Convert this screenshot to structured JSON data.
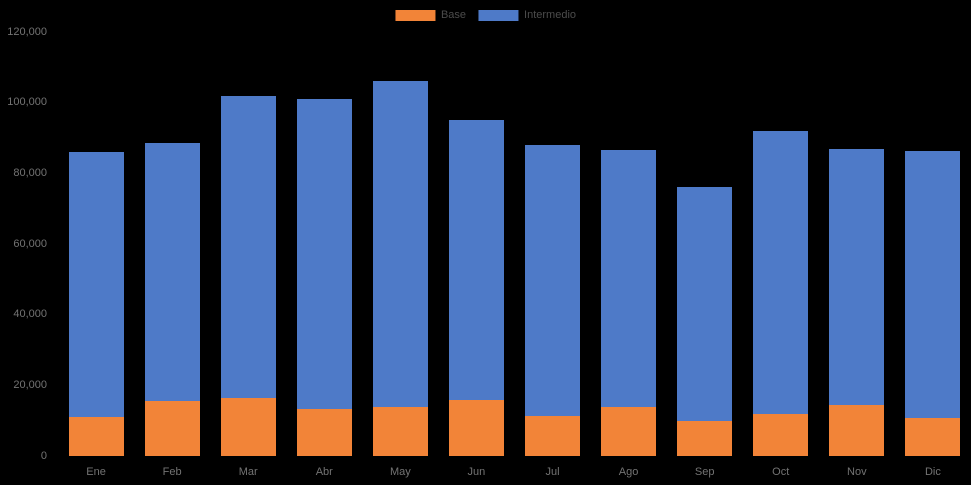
{
  "chart_data": {
    "type": "bar",
    "stacked": true,
    "title": "",
    "xlabel": "",
    "ylabel": "",
    "categories": [
      "Ene",
      "Feb",
      "Mar",
      "Abr",
      "May",
      "Jun",
      "Jul",
      "Ago",
      "Sep",
      "Oct",
      "Nov",
      "Dic"
    ],
    "series": [
      {
        "name": "Base",
        "color": "#F28438",
        "values": [
          11000,
          15600,
          16400,
          13200,
          13800,
          15800,
          11300,
          14000,
          9900,
          11900,
          14500,
          10800
        ]
      },
      {
        "name": "Intermedio",
        "color": "#4E7AC8",
        "values": [
          75000,
          72900,
          85600,
          87800,
          92200,
          79200,
          76700,
          72600,
          66100,
          80100,
          72500,
          75400
        ]
      }
    ],
    "totals": [
      86000,
      88500,
      102000,
      101000,
      106000,
      95000,
      88000,
      86600,
      76000,
      92000,
      87000,
      86200
    ],
    "ylim": [
      0,
      120000
    ],
    "ytick_interval": 20000,
    "ytick_labels": [
      "0",
      "20,000",
      "40,000",
      "60,000",
      "80,000",
      "100,000",
      "120,000"
    ],
    "legend_position": "top-center",
    "grid": false,
    "background_color": "#000000",
    "axis_text_color": "#737373",
    "legend_text_color": "#4c4c4c"
  }
}
